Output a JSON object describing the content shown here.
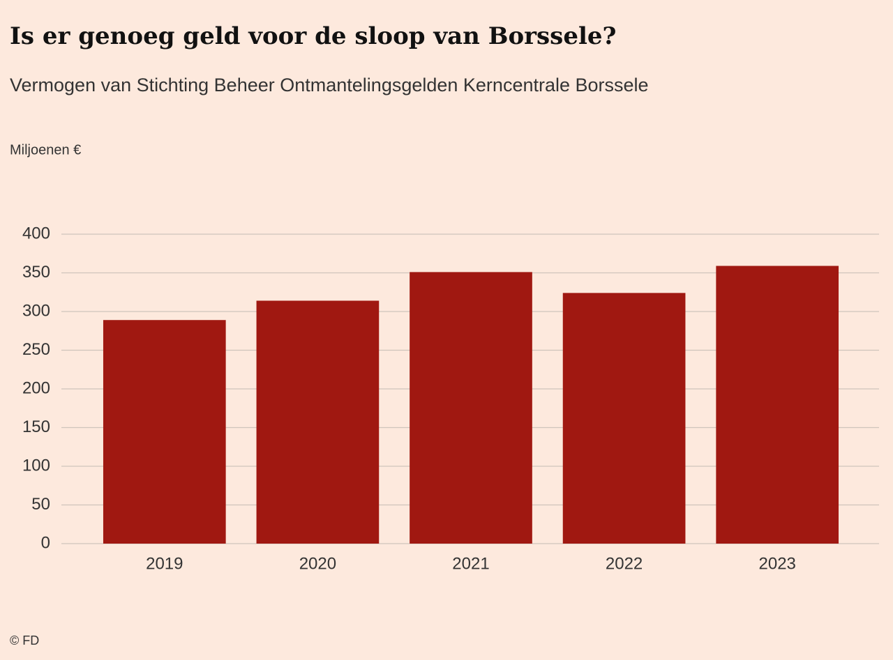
{
  "chart_data": {
    "type": "bar",
    "title": "Is er genoeg geld voor de sloop van Borssele?",
    "subtitle": "Vermogen van Stichting Beheer Ontmantelingsgelden Kerncentrale Borssele",
    "y_label": "Miljoenen €",
    "source": "© FD",
    "categories": [
      "2019",
      "2020",
      "2021",
      "2022",
      "2023"
    ],
    "values": [
      289,
      314,
      351,
      324,
      359
    ],
    "color": "#a01811",
    "ylim": [
      0,
      400
    ],
    "yticks": [
      0,
      50,
      100,
      150,
      200,
      250,
      300,
      350,
      400
    ],
    "grid": true
  }
}
